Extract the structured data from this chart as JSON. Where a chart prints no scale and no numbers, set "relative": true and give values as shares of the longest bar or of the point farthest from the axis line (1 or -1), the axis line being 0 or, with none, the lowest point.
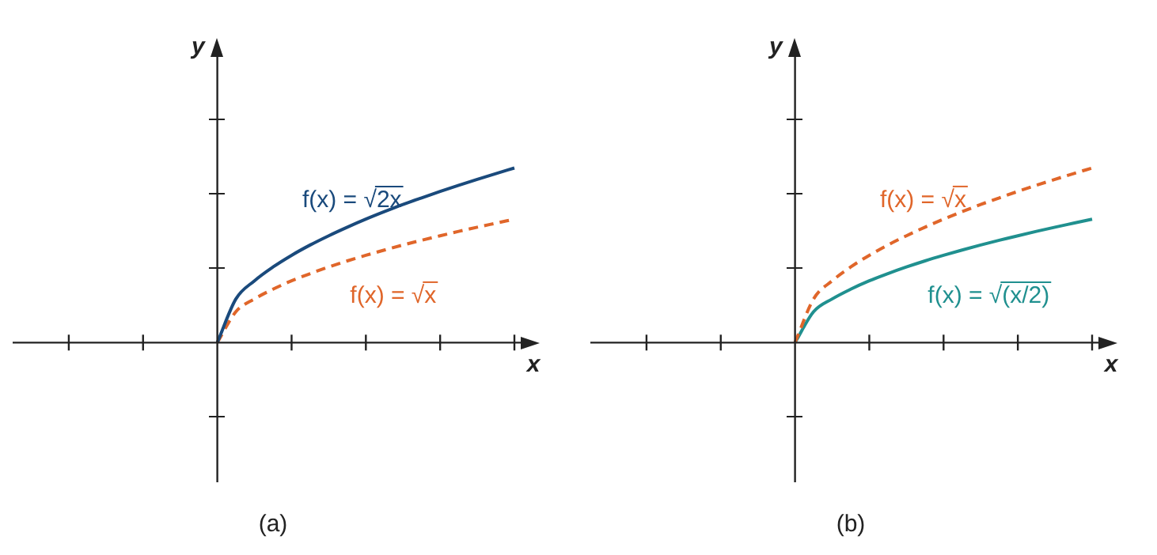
{
  "chart_data": [
    {
      "type": "line",
      "title": "(a)",
      "xlabel": "x",
      "ylabel": "y",
      "relative": true,
      "legend": "center",
      "categories": [
        null,
        null,
        null,
        null,
        null,
        null,
        null,
        null,
        null,
        null,
        null,
        null,
        null,
        null,
        null,
        null,
        null,
        null,
        null,
        null,
        null,
        null,
        null,
        null,
        null,
        null,
        null
      ],
      "series": [
        {
          "name": "f(x) = √2x",
          "color": "#1a4a7c",
          "line_style": "solid",
          "values": [
            null,
            null,
            null,
            null,
            null,
            null,
            null,
            null,
            null,
            null,
            0,
            0.25,
            0.354,
            0.433,
            0.5,
            0.559,
            0.612,
            0.661,
            0.707,
            0.75,
            0.791,
            0.829,
            0.866,
            0.901,
            0.935,
            0.968,
            1
          ]
        },
        {
          "name": "f(x) = √x",
          "color": "#e0662a",
          "line_style": "dashed",
          "values": [
            null,
            null,
            null,
            null,
            null,
            null,
            null,
            null,
            null,
            null,
            0,
            0.177,
            0.25,
            0.306,
            0.354,
            0.395,
            0.433,
            0.468,
            0.5,
            0.53,
            0.559,
            0.586,
            0.612,
            0.637,
            0.661,
            0.684,
            0.707
          ]
        }
      ]
    },
    {
      "type": "line",
      "title": "(b)",
      "xlabel": "x",
      "ylabel": "y",
      "relative": true,
      "legend": "center",
      "categories": [
        null,
        null,
        null,
        null,
        null,
        null,
        null,
        null,
        null,
        null,
        null,
        null,
        null,
        null,
        null,
        null,
        null,
        null,
        null,
        null,
        null,
        null,
        null,
        null,
        null,
        null,
        null
      ],
      "series": [
        {
          "name": "f(x) = √x",
          "color": "#e0662a",
          "line_style": "dashed",
          "values": [
            null,
            null,
            null,
            null,
            null,
            null,
            null,
            null,
            null,
            null,
            0,
            0.25,
            0.354,
            0.433,
            0.5,
            0.559,
            0.612,
            0.661,
            0.707,
            0.75,
            0.791,
            0.829,
            0.866,
            0.901,
            0.935,
            0.968,
            1
          ]
        },
        {
          "name": "f(x) = √(x/2)",
          "color": "#20908f",
          "line_style": "solid",
          "values": [
            null,
            null,
            null,
            null,
            null,
            null,
            null,
            null,
            null,
            null,
            0,
            0.177,
            0.25,
            0.306,
            0.354,
            0.395,
            0.433,
            0.468,
            0.5,
            0.53,
            0.559,
            0.586,
            0.612,
            0.637,
            0.661,
            0.684,
            0.707
          ]
        }
      ]
    }
  ]
}
